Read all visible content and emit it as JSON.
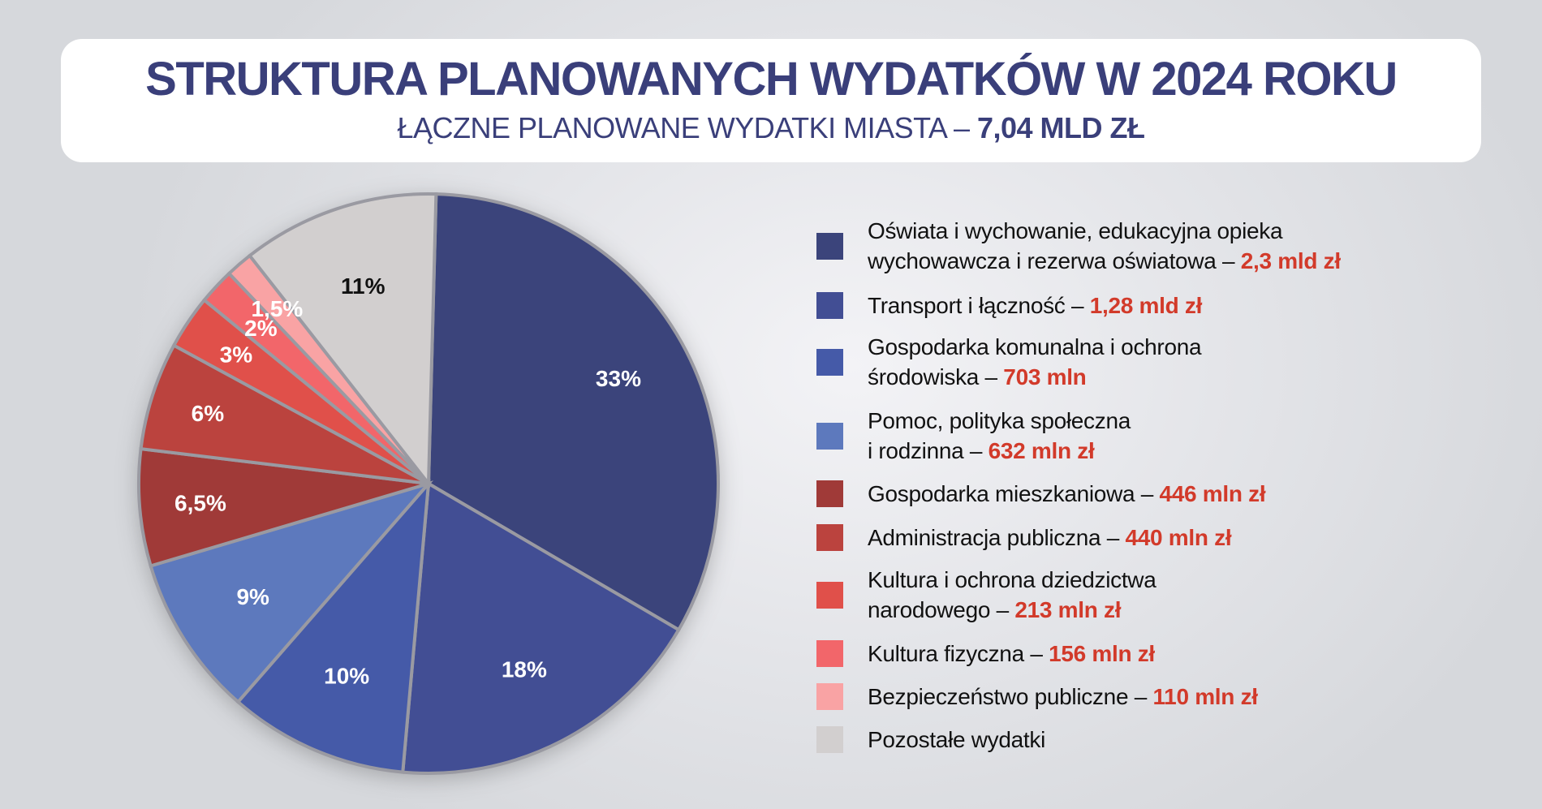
{
  "header": {
    "title": "STRUKTURA PLANOWANYCH WYDATKÓW W 2024 ROKU",
    "subtitle_prefix": "ŁĄCZNE PLANOWANE WYDATKI MIASTA – ",
    "subtitle_value": "7,04 MLD ZŁ"
  },
  "chart_data": {
    "type": "pie",
    "title": "STRUKTURA PLANOWANYCH WYDATKÓW W 2024 ROKU",
    "subtitle": "ŁĄCZNE PLANOWANE WYDATKI MIASTA – 7,04 MLD ZŁ",
    "direction": "clockwise from top",
    "legend_position": "right",
    "slices": [
      {
        "label_lines": [
          "Oświata i wychowanie, edukacyjna opieka",
          "wychowawcza i rezerwa oświatowa – "
        ],
        "amount": "2,3 mld zł",
        "value": 33,
        "pct_label": "33%",
        "color": "#3b447b",
        "label_color": "#ffffff"
      },
      {
        "label_lines": [
          "Transport i łączność – "
        ],
        "amount": "1,28 mld zł",
        "value": 18,
        "pct_label": "18%",
        "color": "#424e94",
        "label_color": "#ffffff"
      },
      {
        "label_lines": [
          "Gospodarka komunalna i ochrona",
          "środowiska – "
        ],
        "amount": "703 mln",
        "value": 10,
        "pct_label": "10%",
        "color": "#455aa8",
        "label_color": "#ffffff"
      },
      {
        "label_lines": [
          "Pomoc, polityka społeczna",
          "i rodzinna – "
        ],
        "amount": "632 mln zł",
        "value": 9,
        "pct_label": "9%",
        "color": "#5d79bd",
        "label_color": "#ffffff"
      },
      {
        "label_lines": [
          "Gospodarka mieszkaniowa – "
        ],
        "amount": "446 mln zł",
        "value": 6.5,
        "pct_label": "6,5%",
        "color": "#a03a38",
        "label_color": "#ffffff"
      },
      {
        "label_lines": [
          "Administracja publiczna – "
        ],
        "amount": "440 mln zł",
        "value": 6,
        "pct_label": "6%",
        "color": "#bb433e",
        "label_color": "#ffffff"
      },
      {
        "label_lines": [
          "Kultura i ochrona dziedzictwa",
          "narodowego – "
        ],
        "amount": "213 mln zł",
        "value": 3,
        "pct_label": "3%",
        "color": "#e0504a",
        "label_color": "#ffffff"
      },
      {
        "label_lines": [
          "Kultura fizyczna – "
        ],
        "amount": "156 mln zł",
        "value": 2,
        "pct_label": "2%",
        "color": "#f2666a",
        "label_color": "#ffffff"
      },
      {
        "label_lines": [
          "Bezpieczeństwo publiczne – "
        ],
        "amount": "110 mln zł",
        "value": 1.5,
        "pct_label": "1,5%",
        "color": "#f9a3a4",
        "label_color": "#ffffff"
      },
      {
        "label_lines": [
          "Pozostałe wydatki"
        ],
        "amount": "",
        "value": 11,
        "pct_label": "11%",
        "color": "#d2cfcf",
        "label_color": "#111111"
      }
    ]
  }
}
